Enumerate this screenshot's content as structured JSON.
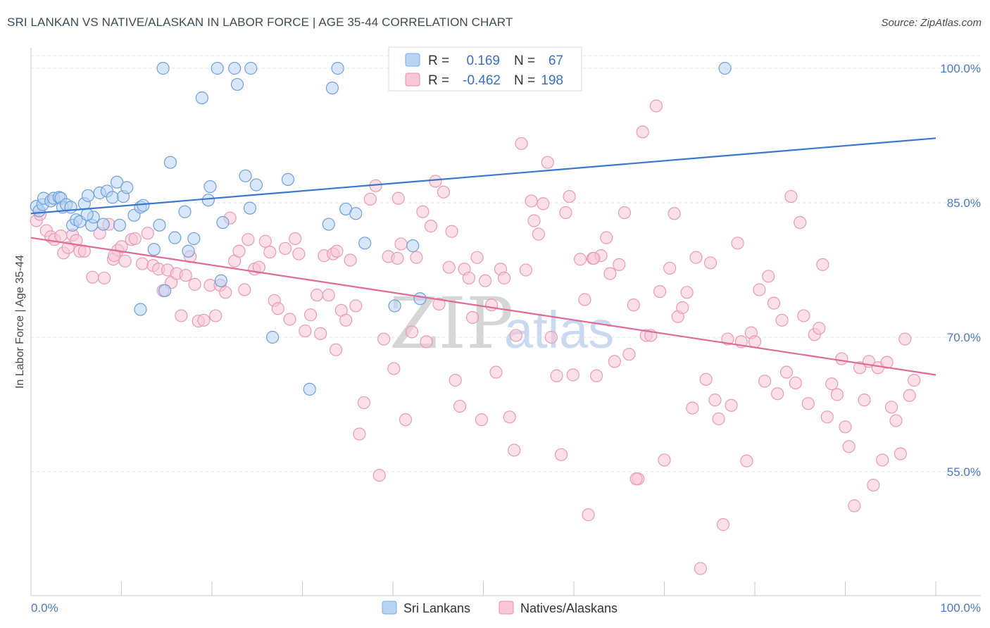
{
  "title": "SRI LANKAN VS NATIVE/ALASKAN IN LABOR FORCE | AGE 35-44 CORRELATION CHART",
  "source": "Source: ZipAtlas.com",
  "watermark": {
    "left": "ZIP",
    "right": "atlas"
  },
  "legend": {
    "r_label": "R =",
    "n_label": "N =",
    "rows": [
      {
        "name": "Sri Lankans",
        "r": "0.169",
        "n": "67",
        "color": "#7aaee8",
        "fill": "#b8d3f4"
      },
      {
        "name": "Natives/Alaskans",
        "r": "-0.462",
        "n": "198",
        "color": "#ec8fae",
        "fill": "#f8c6d6"
      }
    ]
  },
  "chart_data": {
    "type": "scatter",
    "title": "SRI LANKAN VS NATIVE/ALASKAN IN LABOR FORCE | AGE 35-44 CORRELATION CHART",
    "xlabel": "",
    "ylabel": "In Labor Force | Age 35-44",
    "xlim": [
      0,
      100
    ],
    "ylim": [
      40,
      101.5
    ],
    "x_tick_labels": [
      "0.0%",
      "100.0%"
    ],
    "y_ticks": [
      55,
      70,
      85,
      100
    ],
    "y_tick_labels": [
      "55.0%",
      "70.0%",
      "85.0%",
      "100.0%"
    ],
    "grid": true,
    "series": [
      {
        "name": "Sri Lankans",
        "color": "#3a78d0",
        "fill": "#b8d3f4",
        "trend": {
          "x": [
            0,
            100
          ],
          "y": [
            83.8,
            92.2
          ]
        },
        "points": [
          [
            0.6,
            84.6
          ],
          [
            0.9,
            84.1
          ],
          [
            1.3,
            84.8
          ],
          [
            1.4,
            85.5
          ],
          [
            2.2,
            85.2
          ],
          [
            2.5,
            85.5
          ],
          [
            3.1,
            85.6
          ],
          [
            3.3,
            85.5
          ],
          [
            3.5,
            84.5
          ],
          [
            3.9,
            84.8
          ],
          [
            4.4,
            84.5
          ],
          [
            4.6,
            82.5
          ],
          [
            5.0,
            83.1
          ],
          [
            5.4,
            82.9
          ],
          [
            5.9,
            84.9
          ],
          [
            6.3,
            85.8
          ],
          [
            6.7,
            82.5
          ],
          [
            6.9,
            83.4
          ],
          [
            7.6,
            86.1
          ],
          [
            8.0,
            82.6
          ],
          [
            8.4,
            86.3
          ],
          [
            9.0,
            85.6
          ],
          [
            9.5,
            87.3
          ],
          [
            9.8,
            82.5
          ],
          [
            10.2,
            85.7
          ],
          [
            10.6,
            86.7
          ],
          [
            11.4,
            83.6
          ],
          [
            12.1,
            84.5
          ],
          [
            12.4,
            84.7
          ],
          [
            13.6,
            79.8
          ],
          [
            14.2,
            82.5
          ],
          [
            14.8,
            75.2
          ],
          [
            15.4,
            89.5
          ],
          [
            15.9,
            81.1
          ],
          [
            17.0,
            84.0
          ],
          [
            17.4,
            79.6
          ],
          [
            18.0,
            81.0
          ],
          [
            18.9,
            96.7
          ],
          [
            19.6,
            85.3
          ],
          [
            19.8,
            86.8
          ],
          [
            21.2,
            82.8
          ],
          [
            21.0,
            76.3
          ],
          [
            22.8,
            98.2
          ],
          [
            23.7,
            88.0
          ],
          [
            24.2,
            84.4
          ],
          [
            24.9,
            87.0
          ],
          [
            26.7,
            70.0
          ],
          [
            28.4,
            87.6
          ],
          [
            30.8,
            64.2
          ],
          [
            32.9,
            82.6
          ],
          [
            33.3,
            97.8
          ],
          [
            34.8,
            84.3
          ],
          [
            35.9,
            83.8
          ],
          [
            36.9,
            80.5
          ],
          [
            40.2,
            73.5
          ],
          [
            42.2,
            80.2
          ],
          [
            43.0,
            74.3
          ],
          [
            14.6,
            100.0
          ],
          [
            20.6,
            100.0
          ],
          [
            22.5,
            100.0
          ],
          [
            24.3,
            100.0
          ],
          [
            33.9,
            100.0
          ],
          [
            41.1,
            100.0
          ],
          [
            76.7,
            100.0
          ],
          [
            44.7,
            100.0
          ],
          [
            12.1,
            73.1
          ],
          [
            6.2,
            83.7
          ]
        ]
      },
      {
        "name": "Natives/Alaskans",
        "color": "#e06a98",
        "fill": "#f8c6d6",
        "trend": {
          "x": [
            0,
            100
          ],
          "y": [
            81.1,
            65.8
          ]
        },
        "points": [
          [
            0.6,
            83.0
          ],
          [
            1.0,
            83.7
          ],
          [
            1.7,
            81.9
          ],
          [
            2.2,
            81.2
          ],
          [
            2.6,
            80.9
          ],
          [
            3.3,
            81.3
          ],
          [
            3.6,
            79.4
          ],
          [
            4.1,
            80.0
          ],
          [
            4.6,
            81.4
          ],
          [
            5.0,
            80.8
          ],
          [
            5.4,
            79.6
          ],
          [
            5.9,
            79.6
          ],
          [
            6.8,
            76.7
          ],
          [
            7.6,
            81.6
          ],
          [
            8.1,
            76.6
          ],
          [
            8.6,
            82.6
          ],
          [
            9.1,
            78.7
          ],
          [
            9.6,
            79.7
          ],
          [
            10.0,
            80.1
          ],
          [
            10.4,
            78.5
          ],
          [
            11.1,
            80.9
          ],
          [
            11.5,
            81.0
          ],
          [
            12.3,
            78.2
          ],
          [
            12.9,
            81.6
          ],
          [
            13.5,
            78.0
          ],
          [
            14.1,
            77.6
          ],
          [
            14.6,
            75.2
          ],
          [
            15.1,
            77.5
          ],
          [
            15.5,
            76.1
          ],
          [
            16.1,
            77.1
          ],
          [
            16.6,
            72.4
          ],
          [
            17.1,
            76.9
          ],
          [
            17.6,
            79.0
          ],
          [
            18.1,
            75.9
          ],
          [
            18.5,
            71.8
          ],
          [
            19.1,
            71.9
          ],
          [
            19.8,
            75.8
          ],
          [
            20.4,
            72.4
          ],
          [
            20.9,
            75.8
          ],
          [
            21.5,
            75.0
          ],
          [
            22.0,
            83.3
          ],
          [
            22.5,
            78.5
          ],
          [
            23.0,
            79.6
          ],
          [
            23.6,
            75.3
          ],
          [
            24.0,
            80.9
          ],
          [
            24.7,
            77.6
          ],
          [
            25.2,
            77.8
          ],
          [
            25.9,
            80.7
          ],
          [
            26.4,
            79.5
          ],
          [
            26.9,
            74.1
          ],
          [
            27.3,
            73.2
          ],
          [
            28.1,
            79.9
          ],
          [
            28.6,
            72.0
          ],
          [
            29.2,
            81.0
          ],
          [
            29.6,
            79.3
          ],
          [
            30.3,
            70.7
          ],
          [
            30.9,
            72.5
          ],
          [
            31.6,
            74.7
          ],
          [
            32.0,
            70.4
          ],
          [
            32.4,
            79.1
          ],
          [
            32.9,
            74.7
          ],
          [
            33.4,
            79.3
          ],
          [
            33.7,
            68.6
          ],
          [
            34.3,
            73.0
          ],
          [
            34.8,
            71.9
          ],
          [
            35.3,
            78.6
          ],
          [
            35.9,
            73.5
          ],
          [
            36.3,
            59.2
          ],
          [
            36.8,
            62.7
          ],
          [
            37.5,
            85.4
          ],
          [
            38.1,
            86.9
          ],
          [
            38.5,
            54.6
          ],
          [
            39.0,
            69.8
          ],
          [
            39.5,
            79.0
          ],
          [
            40.1,
            66.5
          ],
          [
            40.6,
            85.5
          ],
          [
            40.9,
            80.4
          ],
          [
            41.4,
            60.8
          ],
          [
            42.1,
            70.6
          ],
          [
            42.6,
            78.9
          ],
          [
            43.3,
            84.0
          ],
          [
            43.7,
            69.5
          ],
          [
            44.2,
            82.4
          ],
          [
            44.7,
            87.4
          ],
          [
            45.1,
            73.7
          ],
          [
            45.6,
            86.2
          ],
          [
            46.2,
            77.8
          ],
          [
            46.5,
            81.8
          ],
          [
            46.9,
            65.2
          ],
          [
            47.4,
            62.3
          ],
          [
            47.9,
            77.6
          ],
          [
            48.4,
            76.6
          ],
          [
            48.8,
            72.2
          ],
          [
            49.3,
            78.9
          ],
          [
            49.8,
            60.8
          ],
          [
            50.2,
            76.3
          ],
          [
            50.9,
            73.6
          ],
          [
            51.4,
            66.1
          ],
          [
            51.9,
            77.6
          ],
          [
            52.3,
            76.6
          ],
          [
            52.9,
            61.1
          ],
          [
            53.4,
            57.4
          ],
          [
            53.6,
            70.2
          ],
          [
            54.2,
            91.6
          ],
          [
            54.7,
            77.5
          ],
          [
            55.3,
            85.2
          ],
          [
            55.6,
            83.0
          ],
          [
            56.1,
            81.5
          ],
          [
            56.6,
            84.9
          ],
          [
            57.1,
            89.5
          ],
          [
            57.5,
            70.0
          ],
          [
            58.1,
            65.7
          ],
          [
            58.6,
            56.9
          ],
          [
            59.1,
            83.9
          ],
          [
            59.5,
            85.7
          ],
          [
            59.9,
            65.8
          ],
          [
            60.7,
            78.7
          ],
          [
            61.2,
            74.2
          ],
          [
            61.6,
            50.2
          ],
          [
            62.1,
            78.8
          ],
          [
            62.5,
            65.7
          ],
          [
            63.0,
            79.1
          ],
          [
            63.6,
            81.1
          ],
          [
            64.0,
            77.1
          ],
          [
            64.5,
            67.3
          ],
          [
            65.0,
            78.1
          ],
          [
            65.6,
            83.9
          ],
          [
            66.1,
            68.1
          ],
          [
            66.6,
            73.6
          ],
          [
            67.1,
            54.2
          ],
          [
            67.6,
            92.9
          ],
          [
            68.0,
            70.2
          ],
          [
            68.5,
            70.2
          ],
          [
            69.1,
            95.8
          ],
          [
            69.5,
            75.1
          ],
          [
            70.0,
            56.3
          ],
          [
            70.6,
            77.7
          ],
          [
            71.1,
            83.8
          ],
          [
            71.5,
            72.3
          ],
          [
            72.0,
            73.3
          ],
          [
            72.5,
            75.0
          ],
          [
            73.1,
            62.1
          ],
          [
            73.5,
            78.9
          ],
          [
            74.0,
            44.2
          ],
          [
            74.6,
            65.3
          ],
          [
            75.1,
            78.3
          ],
          [
            75.6,
            63.0
          ],
          [
            76.0,
            60.9
          ],
          [
            76.5,
            49.1
          ],
          [
            77.0,
            69.8
          ],
          [
            77.4,
            62.4
          ],
          [
            78.1,
            80.5
          ],
          [
            78.5,
            69.5
          ],
          [
            79.1,
            56.2
          ],
          [
            79.6,
            70.5
          ],
          [
            80.0,
            69.5
          ],
          [
            80.5,
            75.3
          ],
          [
            81.1,
            65.1
          ],
          [
            81.5,
            76.8
          ],
          [
            82.1,
            73.8
          ],
          [
            82.5,
            63.7
          ],
          [
            83.0,
            71.9
          ],
          [
            83.5,
            66.1
          ],
          [
            84.0,
            85.7
          ],
          [
            84.5,
            64.9
          ],
          [
            85.0,
            82.8
          ],
          [
            85.4,
            72.4
          ],
          [
            85.9,
            62.6
          ],
          [
            86.6,
            70.3
          ],
          [
            87.1,
            71.0
          ],
          [
            87.5,
            78.1
          ],
          [
            88.0,
            61.1
          ],
          [
            88.5,
            64.8
          ],
          [
            89.1,
            63.6
          ],
          [
            89.6,
            67.6
          ],
          [
            90.0,
            60.0
          ],
          [
            90.4,
            57.8
          ],
          [
            91.0,
            51.2
          ],
          [
            91.6,
            66.6
          ],
          [
            92.1,
            63.0
          ],
          [
            92.6,
            67.3
          ],
          [
            93.1,
            53.5
          ],
          [
            93.6,
            66.6
          ],
          [
            94.1,
            56.3
          ],
          [
            94.6,
            67.2
          ],
          [
            95.1,
            62.2
          ],
          [
            95.6,
            60.7
          ],
          [
            96.1,
            57.0
          ],
          [
            96.6,
            69.8
          ],
          [
            97.1,
            63.5
          ],
          [
            97.6,
            65.2
          ],
          [
            33.8,
            79.6
          ],
          [
            9.2,
            79.1
          ],
          [
            40.5,
            78.8
          ],
          [
            66.9,
            54.2
          ],
          [
            62.2,
            78.8
          ]
        ]
      }
    ]
  }
}
